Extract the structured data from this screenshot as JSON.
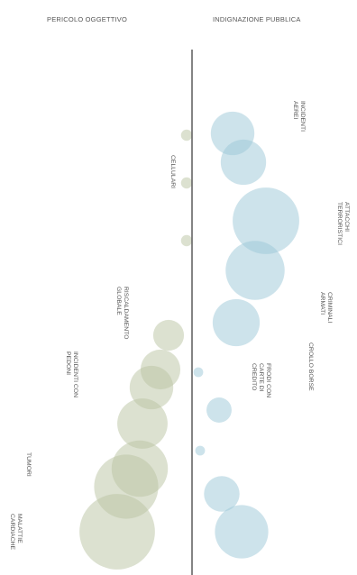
{
  "chart_data": {
    "type": "bubble",
    "title": "",
    "headers": {
      "left": "PERICOLO OGGETTIVO",
      "right": "INDIGNAZIONE PUBBLICA"
    },
    "colors": {
      "left": "#b9c3a2",
      "right": "#9cc8d7",
      "axis": "#666666",
      "label": "#555555"
    },
    "series": [
      {
        "name": "PERICOLO OGGETTIVO",
        "side": "left",
        "points": [
          {
            "label": "CELLULARI",
            "value": 0.4
          },
          {
            "label": "",
            "value": 0.4
          },
          {
            "label": "",
            "value": 0.4
          },
          {
            "label": "RISCALDAMENTO GLOBALE",
            "value": 3
          },
          {
            "label": "",
            "value": 5
          },
          {
            "label": "INCIDENTI CON PEDONI",
            "value": 6
          },
          {
            "label": "",
            "value": 8
          },
          {
            "label": "",
            "value": 10
          },
          {
            "label": "TUMORI",
            "value": 13
          },
          {
            "label": "MALATTIE CARDIACHE",
            "value": 18
          }
        ]
      },
      {
        "name": "INDIGNAZIONE PUBBLICA",
        "side": "right",
        "points": [
          {
            "label": "INCIDENTI AEREI",
            "value": 6
          },
          {
            "label": "",
            "value": 6.5
          },
          {
            "label": "ATTACCHI TERRORISTICI",
            "value": 14
          },
          {
            "label": "CRIMINALI ARMATI",
            "value": 11
          },
          {
            "label": "CROLLO BORSE",
            "value": 7
          },
          {
            "label": "FRODI CON CARTE DI CREDITO",
            "value": 2
          },
          {
            "label": "",
            "value": 0.3
          },
          {
            "label": "",
            "value": 0.3
          },
          {
            "label": "",
            "value": 4
          },
          {
            "label": "",
            "value": 9
          }
        ]
      }
    ]
  }
}
